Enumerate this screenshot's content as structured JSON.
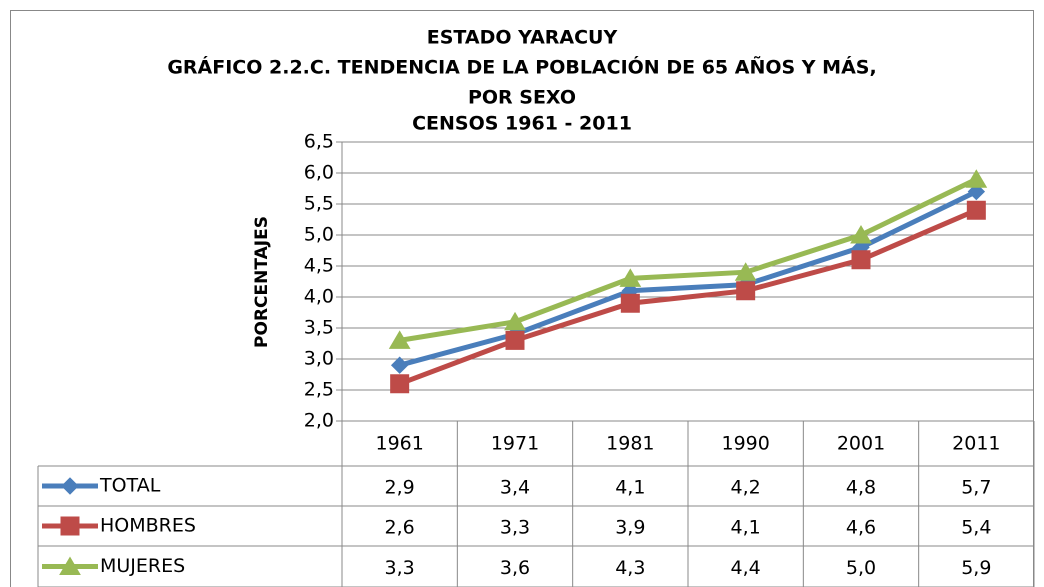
{
  "chart_data": {
    "type": "line",
    "title": [
      "ESTADO YARACUY",
      "GRÁFICO 2.2.C. TENDENCIA DE LA POBLACIÓN DE 65 AÑOS Y MÁS,",
      "POR SEXO",
      "CENSOS 1961 - 2011"
    ],
    "y_label": "PORCENTAJES",
    "categories": [
      "1961",
      "1971",
      "1981",
      "1990",
      "2001",
      "2011"
    ],
    "series": [
      {
        "name": "TOTAL",
        "color": "#4a7ebb",
        "marker": "diamond",
        "values": [
          2.9,
          3.4,
          4.1,
          4.2,
          4.8,
          5.7
        ],
        "value_labels": [
          "2,9",
          "3,4",
          "4,1",
          "4,2",
          "4,8",
          "5,7"
        ]
      },
      {
        "name": "HOMBRES",
        "color": "#be4b48",
        "marker": "square",
        "values": [
          2.6,
          3.3,
          3.9,
          4.1,
          4.6,
          5.4
        ],
        "value_labels": [
          "2,6",
          "3,3",
          "3,9",
          "4,1",
          "4,6",
          "5,4"
        ]
      },
      {
        "name": "MUJERES",
        "color": "#98b954",
        "marker": "triangle",
        "values": [
          3.3,
          3.6,
          4.3,
          4.4,
          5.0,
          5.9
        ],
        "value_labels": [
          "3,3",
          "3,6",
          "4,3",
          "4,4",
          "5,0",
          "5,9"
        ]
      }
    ],
    "ylim": [
      2.0,
      6.5
    ],
    "yticks": [
      {
        "value": 2.0,
        "label": "2,0"
      },
      {
        "value": 2.5,
        "label": "2,5"
      },
      {
        "value": 3.0,
        "label": "3,0"
      },
      {
        "value": 3.5,
        "label": "3,5"
      },
      {
        "value": 4.0,
        "label": "4,0"
      },
      {
        "value": 4.5,
        "label": "4,5"
      },
      {
        "value": 5.0,
        "label": "5,0"
      },
      {
        "value": 5.5,
        "label": "5,5"
      },
      {
        "value": 6.0,
        "label": "6,0"
      },
      {
        "value": 6.5,
        "label": "6,5"
      }
    ],
    "grid": true,
    "data_table": true
  }
}
